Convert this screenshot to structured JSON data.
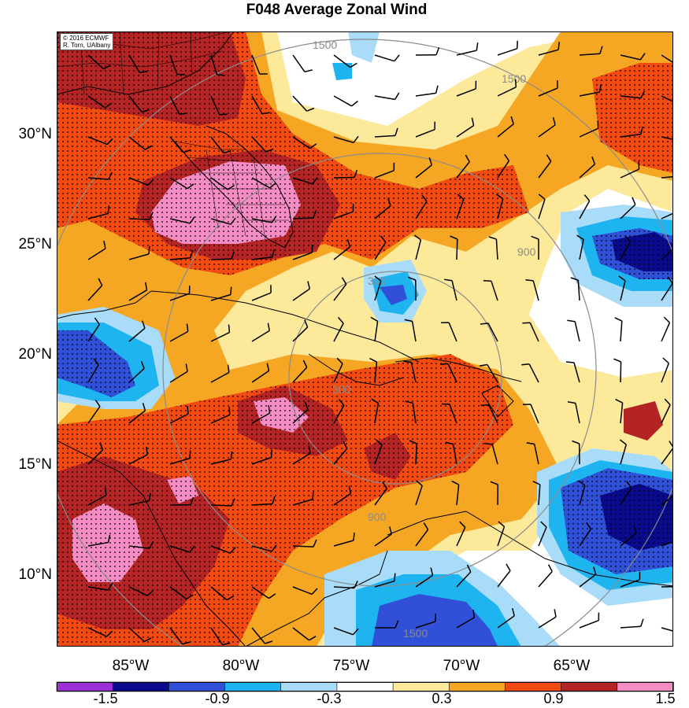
{
  "title": "F048 Average Zonal Wind",
  "credit": [
    "© 2016 ECMWF",
    "R. Torn, UAlbany"
  ],
  "lat_labels": [
    "30°N",
    "25°N",
    "20°N",
    "15°N",
    "10°N"
  ],
  "lon_labels": [
    "85°W",
    "80°W",
    "75°W",
    "70°W",
    "65°W"
  ],
  "ring_labels": [
    "300",
    "900",
    "1500"
  ],
  "colorbar": {
    "labels": [
      "-1.5",
      "-0.9",
      "-0.3",
      "0.3",
      "0.9",
      "1.5"
    ],
    "colors": [
      "#9b30d8",
      "#0a0a8c",
      "#3050d8",
      "#1eb4f0",
      "#a8dcf8",
      "#ffffff",
      "#fde99a",
      "#f5a623",
      "#f24a10",
      "#b52424",
      "#f58cc4"
    ]
  },
  "palette": {
    "neg_strong": "#0a0a8c",
    "neg_mid": "#3050d8",
    "neg_light": "#1eb4f0",
    "neg_pale": "#a8dcf8",
    "pos_pale": "#fde99a",
    "pos_light": "#f5a623",
    "pos_mid": "#f24a10",
    "pos_strong": "#b52424",
    "pos_max": "#f58cc4",
    "ring": "#8c8c8c"
  }
}
